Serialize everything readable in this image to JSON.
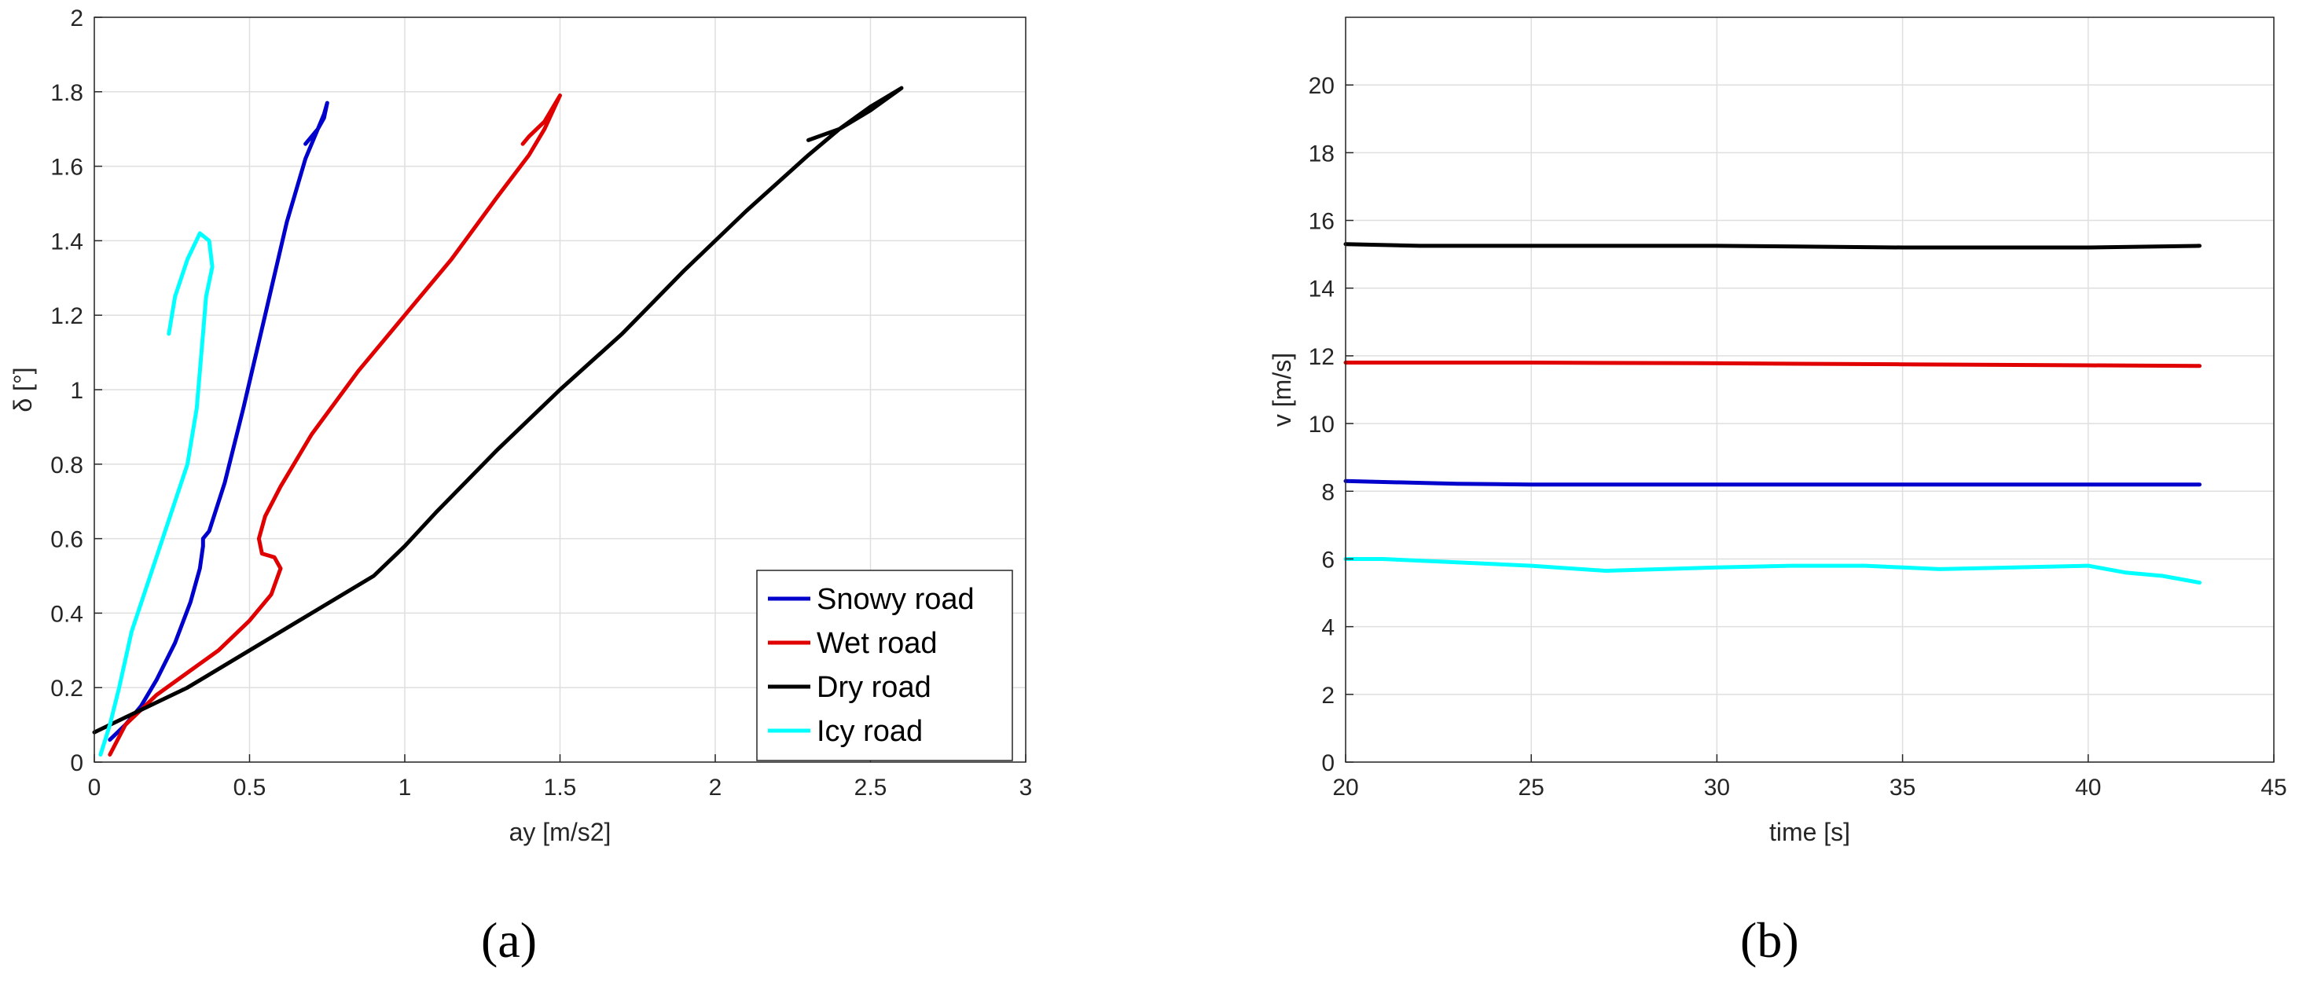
{
  "chart_data": [
    {
      "panel": "(a)",
      "type": "line",
      "xlabel": "ay [m/s2]",
      "ylabel": "δ [°]",
      "xlim": [
        0,
        3
      ],
      "ylim": [
        0,
        2
      ],
      "xticks": [
        0,
        0.5,
        1,
        1.5,
        2,
        2.5,
        3
      ],
      "yticks": [
        0,
        0.2,
        0.4,
        0.6,
        0.8,
        1,
        1.2,
        1.4,
        1.6,
        1.8,
        2
      ],
      "grid": true,
      "legend_position": "bottom-right",
      "series": [
        {
          "name": "Snowy road",
          "color": "#0000cc",
          "x": [
            0.05,
            0.1,
            0.15,
            0.2,
            0.26,
            0.31,
            0.34,
            0.35,
            0.35,
            0.37,
            0.42,
            0.48,
            0.55,
            0.62,
            0.68,
            0.72,
            0.74,
            0.75,
            0.74,
            0.72,
            0.7,
            0.68
          ],
          "y": [
            0.06,
            0.1,
            0.15,
            0.22,
            0.32,
            0.43,
            0.52,
            0.58,
            0.6,
            0.62,
            0.75,
            0.95,
            1.2,
            1.45,
            1.62,
            1.7,
            1.74,
            1.77,
            1.73,
            1.7,
            1.68,
            1.66
          ]
        },
        {
          "name": "Wet road",
          "color": "#e00000",
          "x": [
            0.05,
            0.1,
            0.2,
            0.3,
            0.4,
            0.5,
            0.57,
            0.6,
            0.58,
            0.54,
            0.53,
            0.55,
            0.6,
            0.7,
            0.85,
            1.0,
            1.15,
            1.3,
            1.4,
            1.45,
            1.5,
            1.45,
            1.4,
            1.38
          ],
          "y": [
            0.02,
            0.1,
            0.18,
            0.24,
            0.3,
            0.38,
            0.45,
            0.52,
            0.55,
            0.56,
            0.6,
            0.66,
            0.74,
            0.88,
            1.05,
            1.2,
            1.35,
            1.52,
            1.63,
            1.7,
            1.79,
            1.72,
            1.68,
            1.66
          ]
        },
        {
          "name": "Dry road",
          "color": "#000000",
          "x": [
            0.0,
            0.1,
            0.3,
            0.5,
            0.7,
            0.9,
            1.0,
            1.1,
            1.3,
            1.5,
            1.7,
            1.9,
            2.1,
            2.3,
            2.4,
            2.5,
            2.6,
            2.5,
            2.4,
            2.3
          ],
          "y": [
            0.08,
            0.12,
            0.2,
            0.3,
            0.4,
            0.5,
            0.58,
            0.67,
            0.84,
            1.0,
            1.15,
            1.32,
            1.48,
            1.63,
            1.7,
            1.75,
            1.81,
            1.76,
            1.7,
            1.67
          ]
        },
        {
          "name": "Icy road",
          "color": "#00ffff",
          "x": [
            0.02,
            0.05,
            0.08,
            0.12,
            0.18,
            0.24,
            0.3,
            0.33,
            0.34,
            0.35,
            0.36,
            0.38,
            0.37,
            0.34,
            0.3,
            0.26,
            0.24
          ],
          "y": [
            0.02,
            0.1,
            0.2,
            0.35,
            0.5,
            0.65,
            0.8,
            0.95,
            1.05,
            1.15,
            1.25,
            1.33,
            1.4,
            1.42,
            1.35,
            1.25,
            1.15
          ]
        }
      ]
    },
    {
      "panel": "(b)",
      "type": "line",
      "xlabel": "time [s]",
      "ylabel": "v [m/s]",
      "xlim": [
        20,
        45
      ],
      "ylim": [
        0,
        22
      ],
      "xticks": [
        20,
        25,
        30,
        35,
        40,
        45
      ],
      "yticks": [
        0,
        2,
        4,
        6,
        8,
        10,
        12,
        14,
        16,
        18,
        20
      ],
      "grid": true,
      "series": [
        {
          "color": "#000000",
          "x": [
            20,
            22,
            25,
            30,
            35,
            40,
            43
          ],
          "y": [
            15.3,
            15.25,
            15.25,
            15.25,
            15.2,
            15.2,
            15.25
          ]
        },
        {
          "color": "#e00000",
          "x": [
            20,
            25,
            30,
            35,
            40,
            43
          ],
          "y": [
            11.8,
            11.8,
            11.78,
            11.75,
            11.72,
            11.7
          ]
        },
        {
          "color": "#0000cc",
          "x": [
            20,
            23,
            25,
            30,
            35,
            40,
            43
          ],
          "y": [
            8.3,
            8.22,
            8.2,
            8.2,
            8.2,
            8.2,
            8.2
          ]
        },
        {
          "color": "#00ffff",
          "x": [
            20,
            21,
            23,
            25,
            27,
            30,
            32,
            34,
            36,
            38,
            40,
            41,
            42,
            43
          ],
          "y": [
            6.0,
            6.0,
            5.9,
            5.8,
            5.65,
            5.75,
            5.8,
            5.8,
            5.7,
            5.75,
            5.8,
            5.6,
            5.5,
            5.3
          ]
        }
      ]
    }
  ]
}
